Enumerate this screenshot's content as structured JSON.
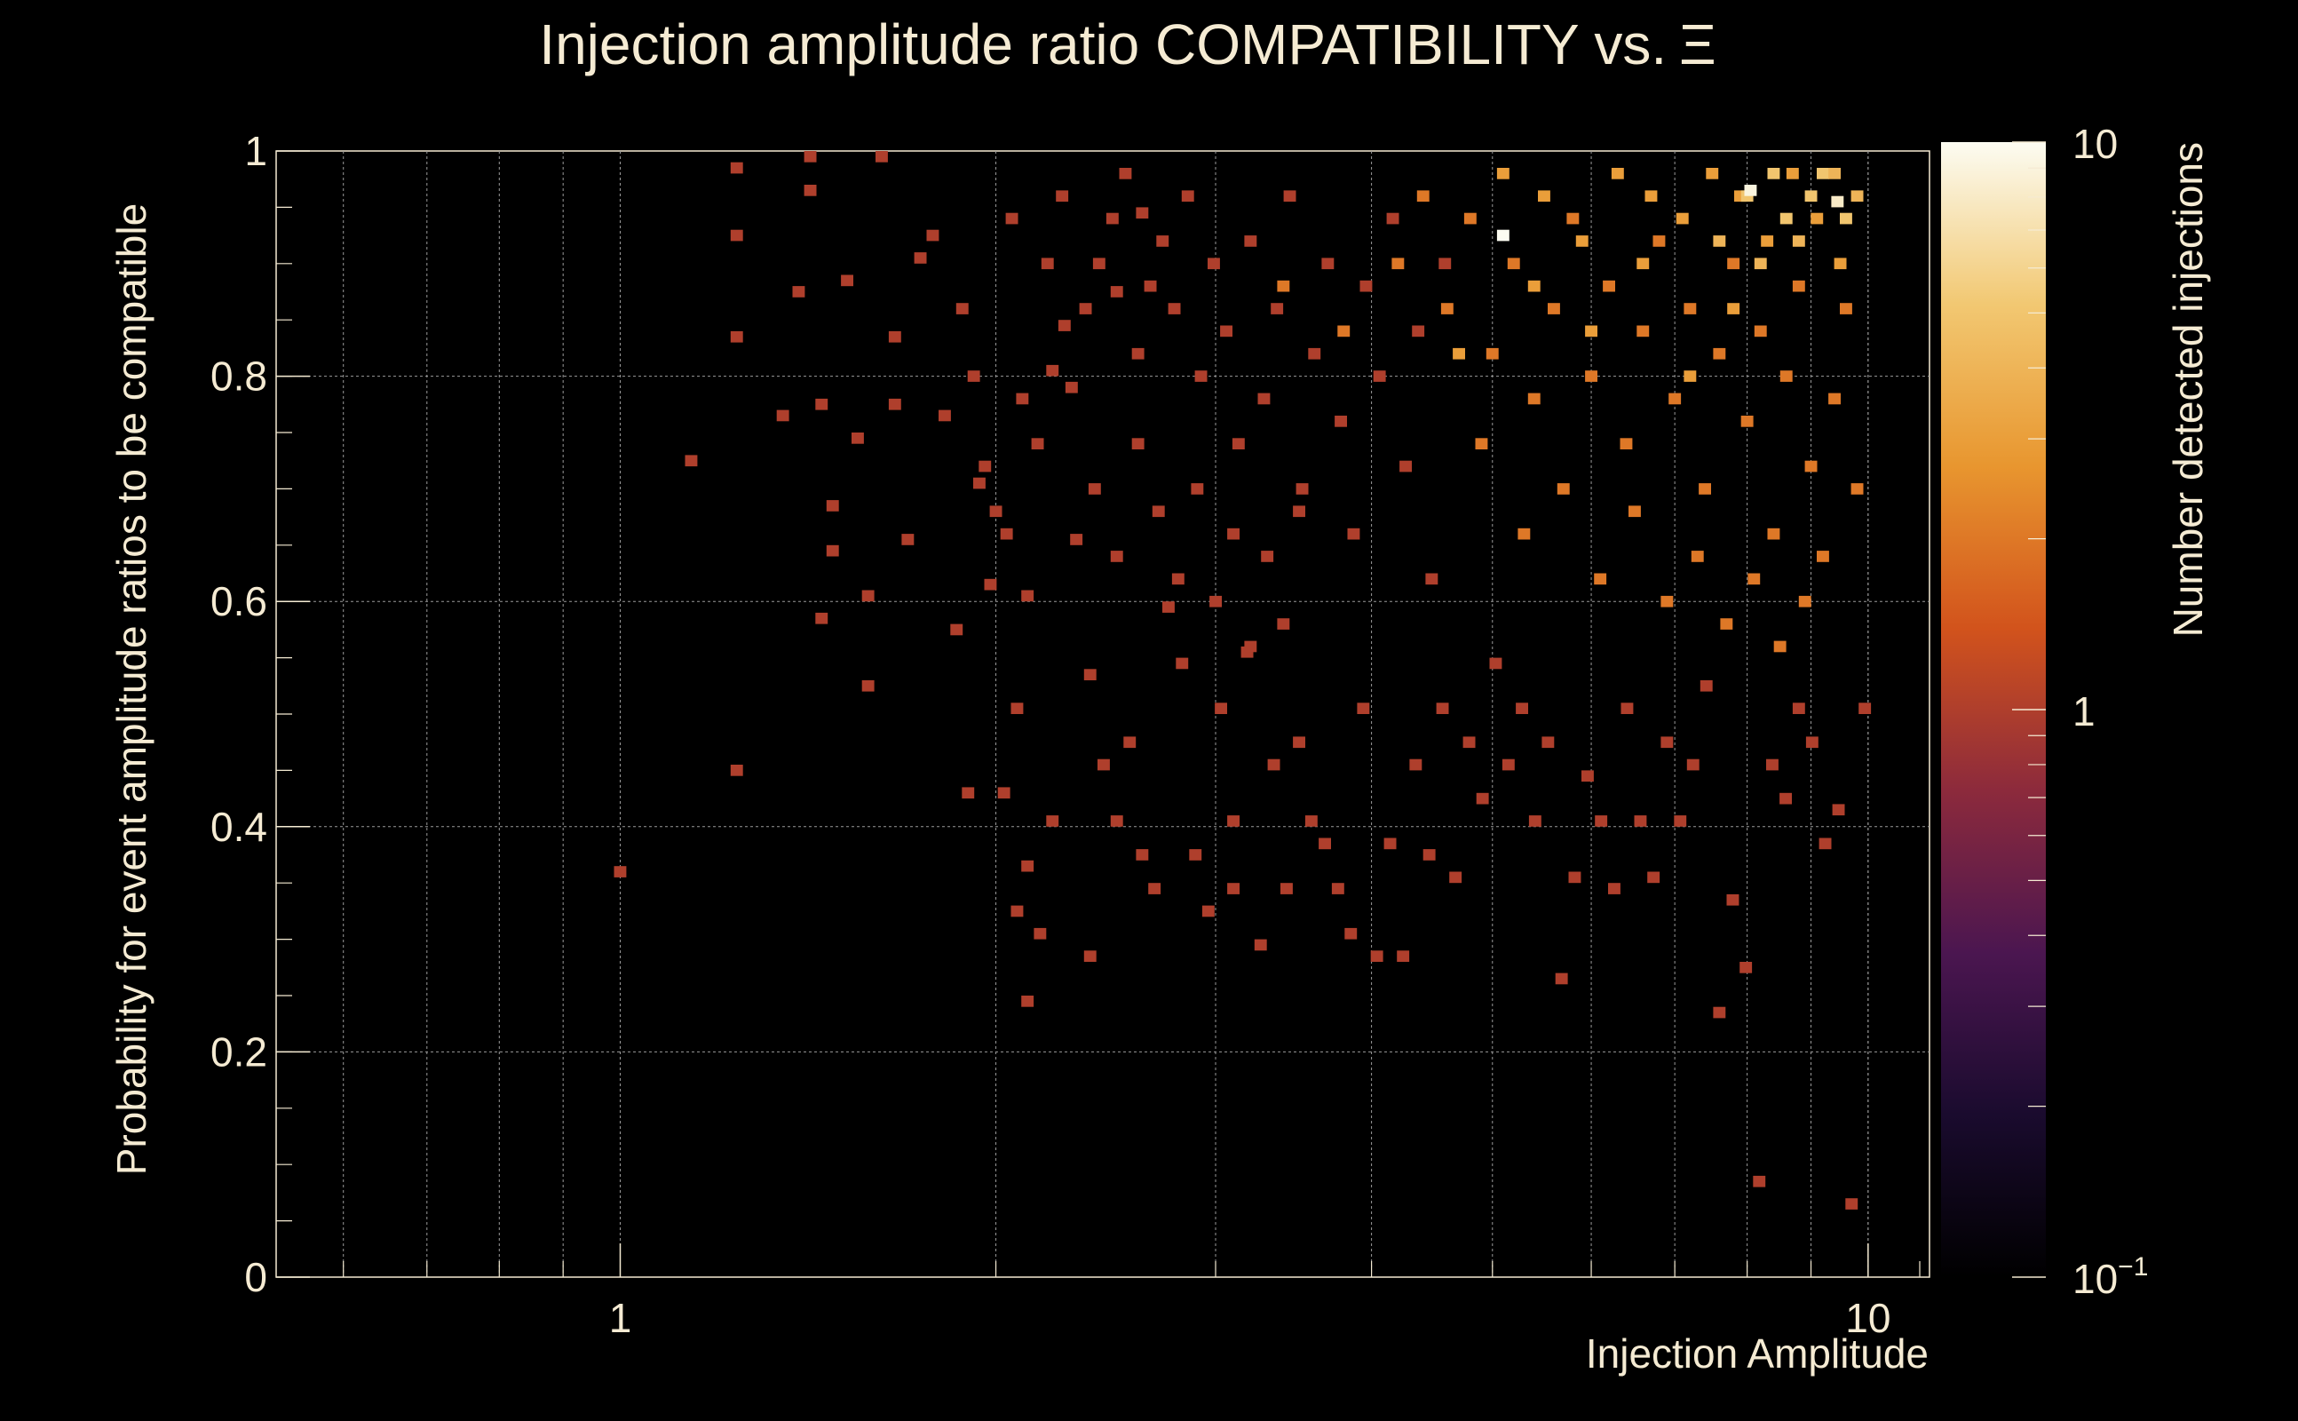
{
  "chart_data": {
    "type": "heatmap",
    "title": "Injection amplitude ratio COMPATIBILITY vs.",
    "title_symbol": "Ξ",
    "xlabel": "Injection Amplitude",
    "ylabel": "Probability for event amplitude ratios to be compatible",
    "zlabel": "Number detected injections",
    "x_scale": "log",
    "xlim": [
      0.53,
      11.2
    ],
    "ylim": [
      0,
      1
    ],
    "zlim": [
      0.1,
      10
    ],
    "z_scale": "log",
    "x_ticks": [
      {
        "value": 1,
        "label": "1"
      },
      {
        "value": 10,
        "label": "10"
      }
    ],
    "y_ticks": [
      {
        "value": 0,
        "label": "0"
      },
      {
        "value": 0.2,
        "label": "0.2"
      },
      {
        "value": 0.4,
        "label": "0.4"
      },
      {
        "value": 0.6,
        "label": "0.6"
      },
      {
        "value": 0.8,
        "label": "0.8"
      },
      {
        "value": 1,
        "label": "1"
      }
    ],
    "z_ticks": [
      {
        "value": 0.1,
        "label": "10",
        "exponent": "−1"
      },
      {
        "value": 1,
        "label": "1",
        "exponent": ""
      },
      {
        "value": 10,
        "label": "10",
        "exponent": ""
      }
    ],
    "grid": true,
    "colormap": [
      "#000000",
      "#1a0b2e",
      "#4b1650",
      "#8c2a3c",
      "#d2531c",
      "#e8962f",
      "#f2c872",
      "#fcfcf2"
    ],
    "background": "#000000",
    "text_color": "#f5ebd3",
    "cells_note": "values are detection counts; bins with zero counts are not drawn",
    "cells": [
      [
        1.0,
        0.36,
        1
      ],
      [
        1.14,
        0.725,
        1
      ],
      [
        1.24,
        0.45,
        1
      ],
      [
        1.24,
        0.835,
        1
      ],
      [
        1.24,
        0.925,
        1
      ],
      [
        1.24,
        0.985,
        1
      ],
      [
        1.35,
        0.765,
        1
      ],
      [
        1.39,
        0.875,
        1
      ],
      [
        1.42,
        0.995,
        1
      ],
      [
        1.42,
        0.965,
        1
      ],
      [
        1.45,
        0.585,
        1
      ],
      [
        1.45,
        0.775,
        1
      ],
      [
        1.48,
        0.685,
        1
      ],
      [
        1.48,
        0.645,
        1
      ],
      [
        1.52,
        0.885,
        1
      ],
      [
        1.55,
        0.745,
        1
      ],
      [
        1.58,
        0.605,
        1
      ],
      [
        1.58,
        0.525,
        1
      ],
      [
        1.62,
        0.995,
        1
      ],
      [
        1.66,
        0.775,
        1
      ],
      [
        1.66,
        0.835,
        1
      ],
      [
        1.7,
        0.655,
        1
      ],
      [
        1.74,
        0.905,
        1
      ],
      [
        1.78,
        0.925,
        1
      ],
      [
        1.82,
        0.765,
        1
      ],
      [
        1.86,
        0.575,
        1
      ],
      [
        1.9,
        0.43,
        1
      ],
      [
        1.94,
        0.705,
        1
      ],
      [
        1.98,
        0.615,
        1
      ],
      [
        2.03,
        0.43,
        1
      ],
      [
        2.08,
        0.505,
        1
      ],
      [
        2.08,
        0.325,
        1
      ],
      [
        2.12,
        0.245,
        1
      ],
      [
        2.12,
        0.365,
        1
      ],
      [
        2.12,
        0.605,
        1
      ],
      [
        2.17,
        0.305,
        1
      ],
      [
        2.22,
        0.405,
        1
      ],
      [
        2.22,
        0.805,
        1
      ],
      [
        2.27,
        0.845,
        1
      ],
      [
        2.32,
        0.655,
        1
      ],
      [
        2.38,
        0.285,
        1
      ],
      [
        2.38,
        0.535,
        1
      ],
      [
        2.44,
        0.455,
        1
      ],
      [
        2.5,
        0.405,
        1
      ],
      [
        2.5,
        0.875,
        1
      ],
      [
        2.56,
        0.475,
        1
      ],
      [
        2.62,
        0.375,
        1
      ],
      [
        2.62,
        0.945,
        1
      ],
      [
        2.68,
        0.345,
        1
      ],
      [
        2.75,
        0.595,
        1
      ],
      [
        2.82,
        0.545,
        1
      ],
      [
        2.89,
        0.375,
        1
      ],
      [
        2.96,
        0.325,
        1
      ],
      [
        3.03,
        0.505,
        1
      ],
      [
        3.1,
        0.345,
        1
      ],
      [
        3.1,
        0.405,
        1
      ],
      [
        3.18,
        0.555,
        1
      ],
      [
        3.26,
        0.295,
        1
      ],
      [
        3.34,
        0.455,
        1
      ],
      [
        3.42,
        0.345,
        1
      ],
      [
        3.5,
        0.475,
        1
      ],
      [
        3.58,
        0.405,
        1
      ],
      [
        3.67,
        0.385,
        1
      ],
      [
        3.76,
        0.345,
        1
      ],
      [
        3.85,
        0.305,
        1
      ],
      [
        3.94,
        0.505,
        1
      ],
      [
        4.04,
        0.285,
        1
      ],
      [
        4.14,
        0.385,
        1
      ],
      [
        4.24,
        0.285,
        1
      ],
      [
        4.34,
        0.455,
        1
      ],
      [
        4.45,
        0.375,
        1
      ],
      [
        4.56,
        0.505,
        1
      ],
      [
        4.67,
        0.355,
        1
      ],
      [
        4.79,
        0.475,
        1
      ],
      [
        4.91,
        0.425,
        1
      ],
      [
        5.03,
        0.545,
        1
      ],
      [
        5.15,
        0.455,
        1
      ],
      [
        5.28,
        0.505,
        1
      ],
      [
        5.41,
        0.405,
        1
      ],
      [
        5.54,
        0.475,
        1
      ],
      [
        5.68,
        0.265,
        1
      ],
      [
        5.82,
        0.355,
        1
      ],
      [
        5.96,
        0.445,
        1
      ],
      [
        6.11,
        0.405,
        1
      ],
      [
        6.26,
        0.345,
        1
      ],
      [
        6.41,
        0.505,
        1
      ],
      [
        6.57,
        0.405,
        1
      ],
      [
        6.73,
        0.355,
        1
      ],
      [
        6.9,
        0.475,
        1
      ],
      [
        7.07,
        0.405,
        1
      ],
      [
        7.24,
        0.455,
        1
      ],
      [
        7.42,
        0.525,
        1
      ],
      [
        7.6,
        0.235,
        1
      ],
      [
        7.79,
        0.335,
        1
      ],
      [
        7.98,
        0.275,
        1
      ],
      [
        8.18,
        0.085,
        1
      ],
      [
        8.38,
        0.455,
        1
      ],
      [
        8.59,
        0.425,
        1
      ],
      [
        8.8,
        0.505,
        1
      ],
      [
        9.02,
        0.475,
        1
      ],
      [
        9.24,
        0.385,
        1
      ],
      [
        9.47,
        0.415,
        1
      ],
      [
        9.7,
        0.065,
        1
      ],
      [
        9.94,
        0.505,
        1
      ],
      [
        2.3,
        0.79,
        1
      ],
      [
        2.36,
        0.86,
        1
      ],
      [
        2.42,
        0.9,
        1
      ],
      [
        2.48,
        0.94,
        1
      ],
      [
        2.54,
        0.98,
        1
      ],
      [
        2.6,
        0.82,
        1
      ],
      [
        2.66,
        0.88,
        1
      ],
      [
        2.72,
        0.92,
        1
      ],
      [
        2.78,
        0.86,
        1
      ],
      [
        2.85,
        0.96,
        1
      ],
      [
        2.92,
        0.8,
        1
      ],
      [
        2.99,
        0.9,
        1
      ],
      [
        3.06,
        0.84,
        1
      ],
      [
        3.13,
        0.74,
        1
      ],
      [
        3.2,
        0.92,
        1
      ],
      [
        3.28,
        0.78,
        1
      ],
      [
        3.36,
        0.86,
        1
      ],
      [
        3.44,
        0.96,
        1
      ],
      [
        3.52,
        0.7,
        1
      ],
      [
        3.6,
        0.82,
        1
      ],
      [
        3.69,
        0.9,
        1
      ],
      [
        3.78,
        0.76,
        1
      ],
      [
        3.87,
        0.66,
        1
      ],
      [
        3.96,
        0.88,
        1
      ],
      [
        4.06,
        0.8,
        1
      ],
      [
        4.16,
        0.94,
        1
      ],
      [
        4.26,
        0.72,
        1
      ],
      [
        4.36,
        0.84,
        1
      ],
      [
        4.47,
        0.62,
        1
      ],
      [
        4.58,
        0.9,
        1
      ],
      [
        2.4,
        0.7,
        1
      ],
      [
        2.5,
        0.64,
        1
      ],
      [
        2.6,
        0.74,
        1
      ],
      [
        2.7,
        0.68,
        1
      ],
      [
        2.8,
        0.62,
        1
      ],
      [
        2.9,
        0.7,
        1
      ],
      [
        3.0,
        0.6,
        1
      ],
      [
        3.1,
        0.66,
        1
      ],
      [
        3.2,
        0.56,
        1
      ],
      [
        3.3,
        0.64,
        1
      ],
      [
        3.4,
        0.58,
        1
      ],
      [
        3.5,
        0.68,
        1
      ],
      [
        2.0,
        0.68,
        1
      ],
      [
        2.04,
        0.66,
        1
      ],
      [
        1.96,
        0.72,
        1
      ],
      [
        2.1,
        0.78,
        1
      ],
      [
        2.16,
        0.74,
        1
      ],
      [
        2.2,
        0.9,
        1
      ],
      [
        2.26,
        0.96,
        1
      ],
      [
        1.92,
        0.8,
        1
      ],
      [
        1.88,
        0.86,
        1
      ],
      [
        2.06,
        0.94,
        1
      ],
      [
        3.4,
        0.88,
        2
      ],
      [
        3.8,
        0.84,
        2
      ],
      [
        4.2,
        0.9,
        2
      ],
      [
        4.6,
        0.86,
        2
      ],
      [
        4.8,
        0.94,
        2
      ],
      [
        5.0,
        0.82,
        2
      ],
      [
        5.2,
        0.9,
        2
      ],
      [
        5.4,
        0.78,
        2
      ],
      [
        5.6,
        0.86,
        2
      ],
      [
        5.8,
        0.94,
        2
      ],
      [
        6.0,
        0.8,
        2
      ],
      [
        6.2,
        0.88,
        2
      ],
      [
        6.4,
        0.74,
        2
      ],
      [
        6.6,
        0.84,
        2
      ],
      [
        6.8,
        0.92,
        2
      ],
      [
        7.0,
        0.78,
        2
      ],
      [
        7.2,
        0.86,
        2
      ],
      [
        7.4,
        0.7,
        2
      ],
      [
        7.6,
        0.82,
        2
      ],
      [
        7.8,
        0.9,
        2
      ],
      [
        8.0,
        0.76,
        2
      ],
      [
        8.2,
        0.84,
        2
      ],
      [
        8.4,
        0.66,
        2
      ],
      [
        8.6,
        0.8,
        2
      ],
      [
        8.8,
        0.88,
        2
      ],
      [
        9.0,
        0.72,
        2
      ],
      [
        9.2,
        0.64,
        2
      ],
      [
        9.4,
        0.78,
        2
      ],
      [
        9.6,
        0.86,
        2
      ],
      [
        9.8,
        0.7,
        2
      ],
      [
        4.4,
        0.96,
        2
      ],
      [
        4.9,
        0.74,
        2
      ],
      [
        5.3,
        0.66,
        2
      ],
      [
        5.7,
        0.7,
        2
      ],
      [
        6.1,
        0.62,
        2
      ],
      [
        6.5,
        0.68,
        2
      ],
      [
        6.9,
        0.6,
        2
      ],
      [
        7.3,
        0.64,
        2
      ],
      [
        7.7,
        0.58,
        2
      ],
      [
        8.1,
        0.62,
        2
      ],
      [
        8.5,
        0.56,
        2
      ],
      [
        8.9,
        0.6,
        2
      ],
      [
        5.1,
        0.98,
        3
      ],
      [
        5.5,
        0.96,
        3
      ],
      [
        5.9,
        0.92,
        3
      ],
      [
        6.3,
        0.98,
        3
      ],
      [
        6.7,
        0.96,
        3
      ],
      [
        7.1,
        0.94,
        3
      ],
      [
        7.5,
        0.98,
        3
      ],
      [
        7.9,
        0.96,
        3
      ],
      [
        8.3,
        0.92,
        3
      ],
      [
        8.7,
        0.98,
        3
      ],
      [
        9.1,
        0.94,
        3
      ],
      [
        9.5,
        0.9,
        3
      ],
      [
        4.7,
        0.82,
        3
      ],
      [
        5.4,
        0.88,
        3
      ],
      [
        6.0,
        0.84,
        3
      ],
      [
        6.6,
        0.9,
        3
      ],
      [
        7.2,
        0.8,
        3
      ],
      [
        7.8,
        0.86,
        3
      ],
      [
        8.0,
        0.96,
        5
      ],
      [
        8.4,
        0.98,
        5
      ],
      [
        8.6,
        0.94,
        5
      ],
      [
        9.0,
        0.96,
        5
      ],
      [
        9.2,
        0.98,
        5
      ],
      [
        9.6,
        0.94,
        5
      ],
      [
        7.6,
        0.92,
        4
      ],
      [
        8.2,
        0.9,
        4
      ],
      [
        8.8,
        0.92,
        4
      ],
      [
        9.4,
        0.98,
        4
      ],
      [
        9.8,
        0.96,
        4
      ],
      [
        5.1,
        0.925,
        10
      ],
      [
        8.05,
        0.965,
        9
      ],
      [
        9.45,
        0.955,
        8
      ]
    ]
  }
}
